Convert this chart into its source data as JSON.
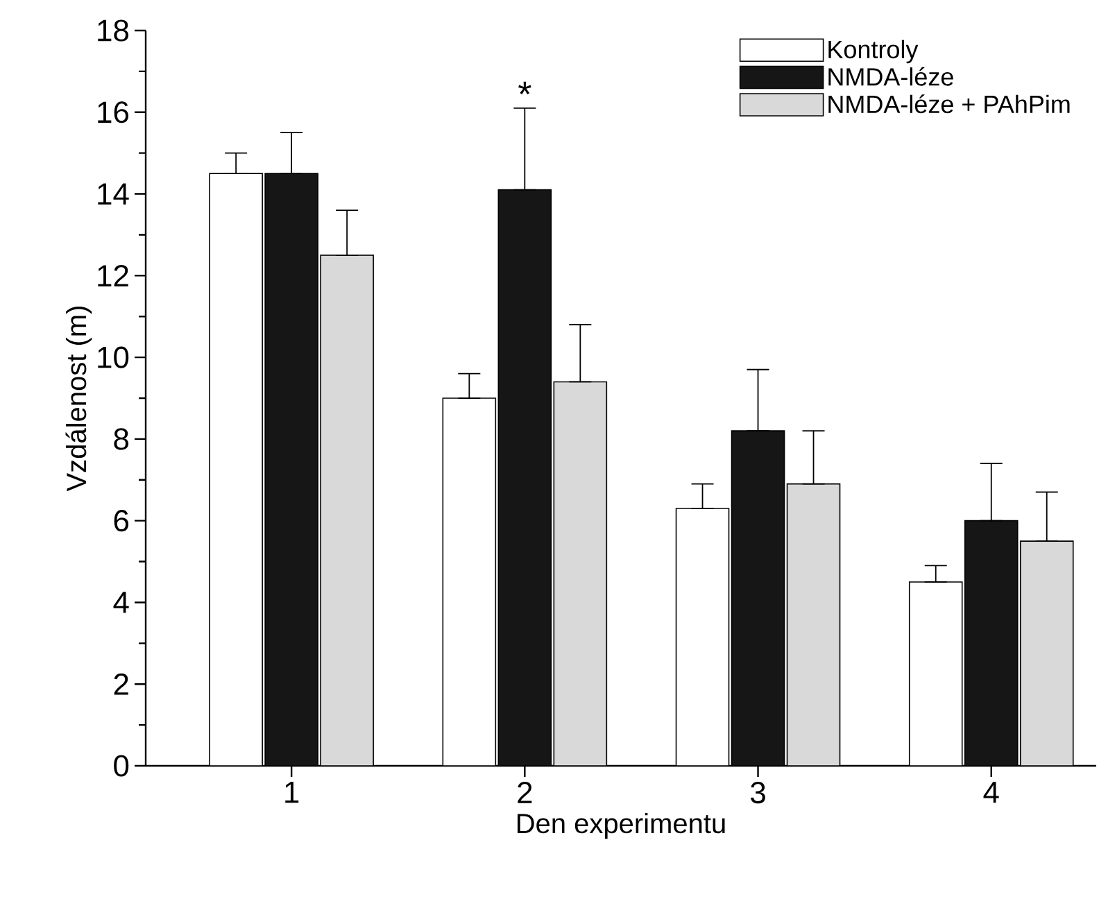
{
  "chart_data": {
    "type": "bar",
    "xlabel": "Den experimentu",
    "ylabel": "Vzdálenost (m)",
    "categories": [
      "1",
      "2",
      "3",
      "4"
    ],
    "series": [
      {
        "name": "Kontroly",
        "color": "#ffffff",
        "values": [
          14.5,
          9.0,
          6.3,
          4.5
        ],
        "errors": [
          [
            14.5,
            15.0
          ],
          [
            9.0,
            9.6
          ],
          [
            6.3,
            6.9
          ],
          [
            4.5,
            4.9
          ]
        ]
      },
      {
        "name": "NMDA-léze",
        "color": "#161616",
        "values": [
          14.5,
          14.1,
          8.2,
          6.0
        ],
        "errors": [
          [
            14.5,
            15.5
          ],
          [
            14.1,
            16.1
          ],
          [
            8.2,
            9.7
          ],
          [
            6.0,
            7.4
          ]
        ]
      },
      {
        "name": "NMDA-léze + PAhPim",
        "color": "#d9d9d9",
        "values": [
          12.5,
          9.4,
          6.9,
          5.5
        ],
        "errors": [
          [
            12.5,
            13.6
          ],
          [
            9.4,
            10.8
          ],
          [
            6.9,
            8.2
          ],
          [
            5.5,
            6.7
          ]
        ]
      }
    ],
    "ylim": [
      0,
      18
    ],
    "yticks": [
      0,
      2,
      4,
      6,
      8,
      10,
      12,
      14,
      16,
      18
    ],
    "annotations": [
      {
        "text": "*",
        "x": "2",
        "y": 16.1
      }
    ],
    "legend": "top right",
    "grid": false
  }
}
